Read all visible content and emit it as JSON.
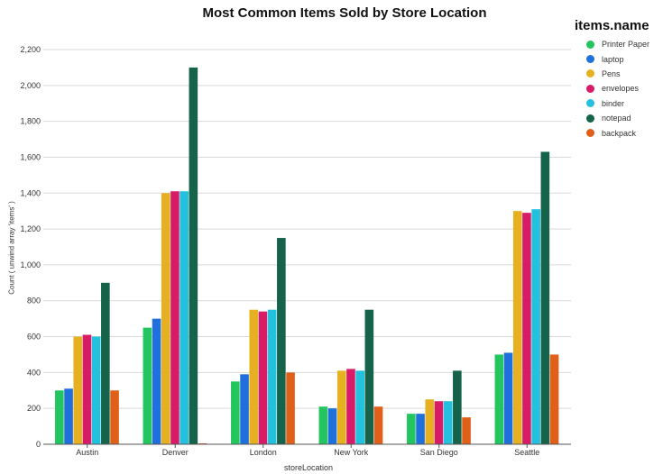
{
  "chart_data": {
    "type": "bar",
    "title": "Most Common Items Sold by Store Location",
    "xlabel": "storeLocation",
    "ylabel": "Count ( unwind array 'items' )",
    "legend_title": "items.name",
    "legend_position": "right",
    "grid": true,
    "ylim": [
      0,
      2200
    ],
    "yticks": [
      0,
      200,
      400,
      600,
      800,
      1000,
      1200,
      1400,
      1600,
      1800,
      2000,
      2200
    ],
    "ytick_labels": [
      "0",
      "200",
      "400",
      "600",
      "800",
      "1,000",
      "1,200",
      "1,400",
      "1,600",
      "1,800",
      "2,000",
      "2,200"
    ],
    "categories": [
      "Austin",
      "Denver",
      "London",
      "New York",
      "San Diego",
      "Seattle"
    ],
    "series": [
      {
        "name": "Printer Paper",
        "color": "#22c55e",
        "values": [
          300,
          650,
          350,
          210,
          170,
          500
        ]
      },
      {
        "name": "laptop",
        "color": "#1f6fdc",
        "values": [
          310,
          700,
          390,
          200,
          170,
          510
        ]
      },
      {
        "name": "Pens",
        "color": "#e6b020",
        "values": [
          600,
          1400,
          750,
          410,
          250,
          1300
        ]
      },
      {
        "name": "envelopes",
        "color": "#d81b66",
        "values": [
          610,
          1410,
          740,
          420,
          240,
          1290
        ]
      },
      {
        "name": "binder",
        "color": "#22c1dd",
        "values": [
          600,
          1410,
          750,
          410,
          240,
          1310
        ]
      },
      {
        "name": "notepad",
        "color": "#14634a",
        "values": [
          900,
          2100,
          1150,
          750,
          410,
          1630
        ]
      },
      {
        "name": "backpack",
        "color": "#e0601a",
        "values": [
          300,
          5,
          400,
          210,
          150,
          500
        ]
      }
    ]
  }
}
